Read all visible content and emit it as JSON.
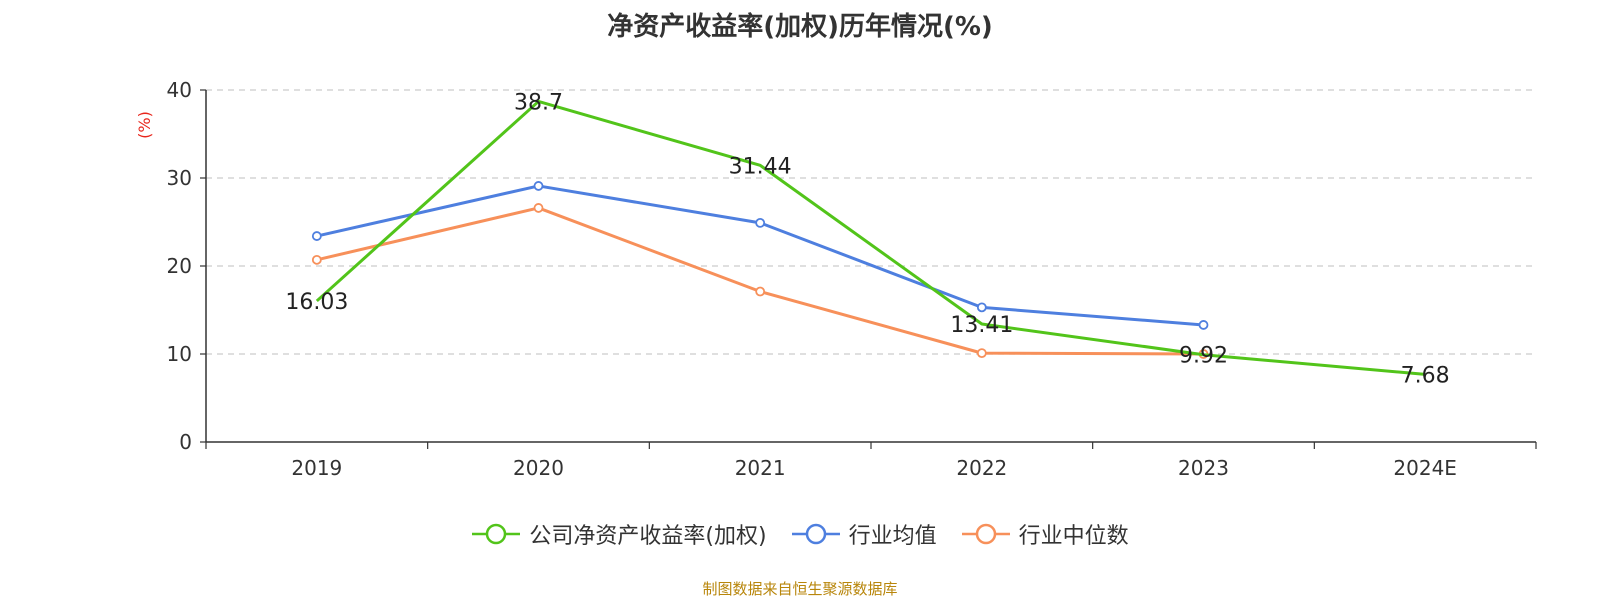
{
  "chart_data": {
    "type": "line",
    "title": "净资产收益率(加权)历年情况(%)",
    "ylabel": "(%)",
    "categories": [
      "2019",
      "2020",
      "2021",
      "2022",
      "2023",
      "2024E"
    ],
    "ylim": [
      0,
      40
    ],
    "yticks": [
      0,
      10,
      20,
      30,
      40
    ],
    "grid": true,
    "legend_position": "bottom",
    "series": [
      {
        "name": "公司净资产收益率(加权)",
        "color": "#52c41a",
        "values": [
          16.03,
          38.7,
          31.44,
          13.41,
          9.92,
          7.68
        ],
        "labels": [
          "16.03",
          "38.7",
          "31.44",
          "13.41",
          "9.92",
          "7.68"
        ]
      },
      {
        "name": "行业均值",
        "color": "#4e7fdf",
        "values": [
          23.4,
          29.1,
          24.9,
          15.3,
          13.3,
          null
        ]
      },
      {
        "name": "行业中位数",
        "color": "#f7905a",
        "values": [
          20.7,
          26.6,
          17.1,
          10.1,
          10.0,
          null
        ]
      }
    ]
  },
  "source": "制图数据来自恒生聚源数据库"
}
